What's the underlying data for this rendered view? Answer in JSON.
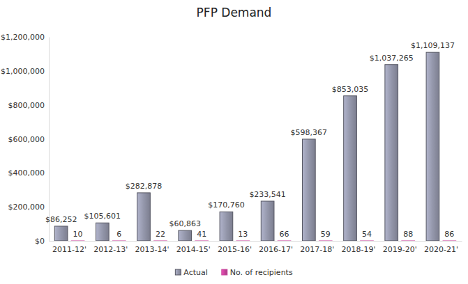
{
  "chart_data": {
    "type": "bar",
    "title": "PFP Demand",
    "categories": [
      "2011-12'",
      "2012-13'",
      "2013-14'",
      "2014-15'",
      "2015-16'",
      "2016-17'",
      "2017-18'",
      "2018-19'",
      "2019-20'",
      "2020-21'"
    ],
    "series": [
      {
        "name": "Actual",
        "color": "#9497ab",
        "values": [
          86252,
          105601,
          282878,
          60863,
          170760,
          233541,
          598367,
          853035,
          1037265,
          1109137
        ],
        "value_labels": [
          "$86,252",
          "$105,601",
          "$282,878",
          "$60,863",
          "$170,760",
          "$233,541",
          "$598,367",
          "$853,035",
          "$1,037,265",
          "$1,109,137"
        ]
      },
      {
        "name": "No. of recipients",
        "color": "#c8449c",
        "values": [
          10,
          6,
          22,
          41,
          13,
          66,
          59,
          54,
          88,
          86
        ]
      }
    ],
    "ylim": [
      0,
      1200000
    ],
    "yticks": [
      {
        "value": 0,
        "label": "$0"
      },
      {
        "value": 200000,
        "label": "$200,000"
      },
      {
        "value": 400000,
        "label": "$400,000"
      },
      {
        "value": 600000,
        "label": "$600,000"
      },
      {
        "value": 800000,
        "label": "$800,000"
      },
      {
        "value": 1000000,
        "label": "$1,000,000"
      },
      {
        "value": 1200000,
        "label": "$1,200,000"
      }
    ],
    "grid": false,
    "legend": "bottom",
    "data_labels": true
  }
}
